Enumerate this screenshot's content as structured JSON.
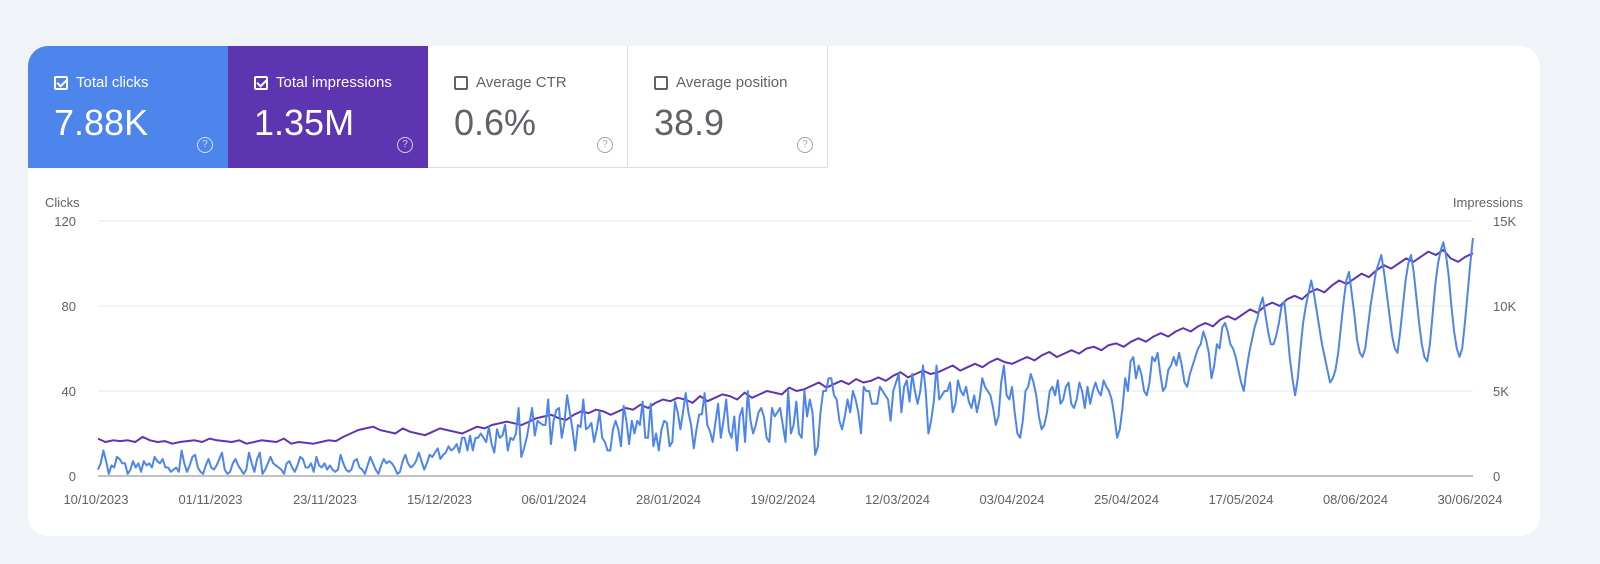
{
  "metrics": [
    {
      "label": "Total clicks",
      "value": "7.88K",
      "checked": true,
      "help": "?"
    },
    {
      "label": "Total impressions",
      "value": "1.35M",
      "checked": true,
      "help": "?"
    },
    {
      "label": "Average CTR",
      "value": "0.6%",
      "checked": false,
      "help": "?"
    },
    {
      "label": "Average position",
      "value": "38.9",
      "checked": false,
      "help": "?"
    }
  ],
  "colors": {
    "clicks": "#4e85ec",
    "impressions": "#5e35b1",
    "grid": "#e8eaed",
    "axis": "#5f6368"
  },
  "chart_data": {
    "type": "line",
    "ylabel_left": "Clicks",
    "ylabel_right": "Impressions",
    "left_ticks": [
      "0",
      "40",
      "80",
      "120"
    ],
    "left_range": [
      0,
      120
    ],
    "right_ticks": [
      "0",
      "5K",
      "10K",
      "15K"
    ],
    "right_range": [
      0,
      15000
    ],
    "x_start": "2023-10-10",
    "x_end": "2024-06-30",
    "x_ticks": [
      "10/10/2023",
      "01/11/2023",
      "23/11/2023",
      "15/12/2023",
      "06/01/2024",
      "28/01/2024",
      "19/02/2024",
      "12/03/2024",
      "03/04/2024",
      "25/04/2024",
      "17/05/2024",
      "08/06/2024",
      "30/06/2024"
    ],
    "grid": true,
    "series": [
      {
        "name": "Clicks",
        "axis": "left",
        "values": [
          3,
          6,
          12,
          7,
          1,
          5,
          4,
          9,
          8,
          6,
          6,
          1,
          3,
          7,
          4,
          6,
          2,
          7,
          5,
          6,
          4,
          9,
          7,
          6,
          8,
          4,
          4,
          2,
          3,
          4,
          2,
          12,
          6,
          2,
          5,
          9,
          10,
          4,
          2,
          1,
          5,
          8,
          4,
          3,
          5,
          8,
          11,
          3,
          1,
          2,
          6,
          8,
          5,
          3,
          1,
          3,
          11,
          6,
          2,
          8,
          11,
          1,
          3,
          6,
          9,
          6,
          5,
          4,
          3,
          1,
          6,
          7,
          4,
          2,
          5,
          9,
          8,
          4,
          4,
          6,
          2,
          9,
          5,
          4,
          6,
          3,
          5,
          3,
          2,
          3,
          10,
          6,
          3,
          2,
          3,
          7,
          8,
          4,
          3,
          1,
          5,
          9,
          6,
          3,
          1,
          5,
          8,
          6,
          7,
          6,
          4,
          1,
          2,
          7,
          10,
          6,
          4,
          5,
          7,
          11,
          7,
          3,
          6,
          10,
          9,
          11,
          13,
          8,
          10,
          11,
          14,
          12,
          13,
          15,
          11,
          18,
          18,
          12,
          19,
          12,
          18,
          18,
          20,
          18,
          16,
          23,
          15,
          11,
          22,
          18,
          19,
          24,
          12,
          18,
          17,
          20,
          32,
          9,
          13,
          18,
          25,
          32,
          19,
          26,
          25,
          24,
          24,
          36,
          15,
          26,
          31,
          32,
          18,
          25,
          38,
          30,
          22,
          12,
          24,
          23,
          36,
          22,
          23,
          25,
          16,
          22,
          30,
          18,
          16,
          12,
          12,
          22,
          26,
          22,
          14,
          33,
          26,
          15,
          26,
          20,
          26,
          24,
          35,
          18,
          18,
          34,
          14,
          20,
          12,
          22,
          26,
          25,
          14,
          16,
          35,
          30,
          22,
          30,
          39,
          30,
          24,
          13,
          22,
          29,
          29,
          39,
          24,
          21,
          16,
          25,
          34,
          18,
          26,
          36,
          21,
          18,
          28,
          12,
          28,
          32,
          16,
          40,
          26,
          20,
          24,
          30,
          32,
          28,
          18,
          16,
          32,
          28,
          30,
          32,
          24,
          16,
          40,
          20,
          24,
          35,
          20,
          18,
          40,
          28,
          36,
          30,
          10,
          14,
          30,
          40,
          40,
          46,
          46,
          38,
          36,
          26,
          22,
          28,
          36,
          30,
          40,
          36,
          30,
          20,
          42,
          40,
          40,
          34,
          34,
          34,
          42,
          40,
          38,
          36,
          26,
          40,
          44,
          48,
          30,
          42,
          45,
          35,
          48,
          40,
          34,
          40,
          52,
          40,
          20,
          26,
          35,
          52,
          36,
          38,
          40,
          40,
          44,
          30,
          34,
          45,
          40,
          38,
          42,
          35,
          32,
          38,
          30,
          36,
          46,
          42,
          40,
          38,
          32,
          24,
          28,
          44,
          52,
          38,
          36,
          42,
          30,
          20,
          18,
          26,
          40,
          42,
          48,
          44,
          38,
          28,
          22,
          24,
          30,
          40,
          42,
          38,
          45,
          34,
          36,
          42,
          44,
          34,
          32,
          36,
          44,
          40,
          32,
          42,
          34,
          40,
          44,
          40,
          38,
          45,
          42,
          40,
          36,
          28,
          18,
          22,
          32,
          46,
          40,
          54,
          56,
          46,
          52,
          48,
          40,
          38,
          44,
          56,
          54,
          58,
          48,
          40,
          42,
          50,
          52,
          56,
          52,
          58,
          52,
          44,
          42,
          48,
          52,
          56,
          60,
          62,
          68,
          64,
          58,
          46,
          52,
          62,
          60,
          70,
          72,
          68,
          62,
          60,
          56,
          50,
          44,
          40,
          50,
          58,
          64,
          70,
          74,
          80,
          84,
          76,
          68,
          62,
          62,
          66,
          72,
          80,
          82,
          70,
          56,
          46,
          38,
          46,
          60,
          72,
          80,
          86,
          92,
          86,
          78,
          70,
          62,
          56,
          50,
          44,
          46,
          50,
          58,
          70,
          82,
          92,
          96,
          86,
          76,
          64,
          58,
          56,
          60,
          70,
          80,
          88,
          96,
          100,
          104,
          96,
          86,
          76,
          66,
          60,
          58,
          68,
          80,
          92,
          100,
          104,
          96,
          84,
          72,
          62,
          56,
          54,
          62,
          76,
          90,
          100,
          106,
          110,
          104,
          94,
          80,
          68,
          60,
          56,
          60,
          72,
          86,
          100,
          112
        ]
      },
      {
        "name": "Impressions",
        "axis": "right",
        "values": [
          2200,
          2000,
          2100,
          2050,
          2100,
          2000,
          2300,
          2100,
          2000,
          2050,
          1900,
          2000,
          2050,
          2100,
          2000,
          2200,
          2100,
          2050,
          2000,
          2100,
          1900,
          2000,
          2100,
          2050,
          2000,
          2200,
          1900,
          2000,
          1950,
          1900,
          2000,
          2100,
          2050,
          2300,
          2500,
          2700,
          2800,
          2900,
          2700,
          2600,
          2500,
          2800,
          2600,
          2500,
          2400,
          2600,
          2800,
          2700,
          2600,
          2500,
          2700,
          2900,
          2800,
          3000,
          3100,
          3200,
          3100,
          3000,
          3200,
          3400,
          3500,
          3600,
          3400,
          3300,
          3600,
          3800,
          3700,
          3900,
          3800,
          3600,
          3800,
          4000,
          3900,
          4200,
          4000,
          4300,
          4500,
          4400,
          4600,
          4500,
          4300,
          4700,
          4400,
          4600,
          4800,
          4700,
          4500,
          4900,
          4600,
          4800,
          5000,
          4900,
          4800,
          5200,
          5000,
          5100,
          5300,
          5500,
          5200,
          5400,
          5600,
          5400,
          5700,
          5500,
          5600,
          5800,
          5600,
          5900,
          6100,
          5800,
          6000,
          6200,
          6000,
          6100,
          6300,
          6500,
          6200,
          6400,
          6600,
          6400,
          6700,
          6900,
          6700,
          6600,
          6800,
          7000,
          6800,
          7100,
          7300,
          7000,
          7200,
          7400,
          7200,
          7500,
          7600,
          7400,
          7700,
          7800,
          7600,
          7900,
          8100,
          7900,
          8200,
          8400,
          8200,
          8500,
          8700,
          8500,
          8800,
          9000,
          8800,
          9200,
          9400,
          9200,
          9500,
          9800,
          9600,
          10000,
          10200,
          10000,
          10400,
          10600,
          10400,
          10800,
          11000,
          10800,
          11200,
          11500,
          11300,
          11600,
          11900,
          11700,
          12100,
          12400,
          12200,
          12500,
          12800,
          12600,
          12900,
          13200,
          13000,
          13300,
          12800,
          12600,
          12900,
          13100
        ]
      }
    ]
  }
}
